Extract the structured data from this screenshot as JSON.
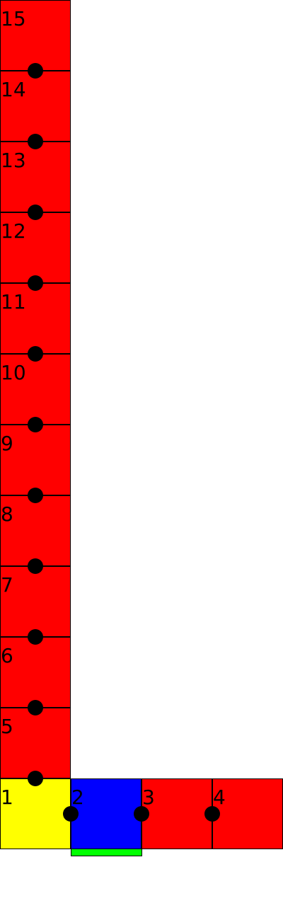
{
  "cells": [
    {
      "label": "1",
      "color": "#ffff00"
    },
    {
      "label": "2",
      "color": "#0000ff"
    },
    {
      "label": "3",
      "color": "#ff0000"
    },
    {
      "label": "4",
      "color": "#ff0000"
    },
    {
      "label": "5",
      "color": "#ff0000"
    },
    {
      "label": "6",
      "color": "#ff0000"
    },
    {
      "label": "7",
      "color": "#ff0000"
    },
    {
      "label": "8",
      "color": "#ff0000"
    },
    {
      "label": "9",
      "color": "#ff0000"
    },
    {
      "label": "10",
      "color": "#ff0000"
    },
    {
      "label": "11",
      "color": "#ff0000"
    },
    {
      "label": "12",
      "color": "#ff0000"
    },
    {
      "label": "13",
      "color": "#ff0000"
    },
    {
      "label": "14",
      "color": "#ff0000"
    },
    {
      "label": "15",
      "color": "#ff0000"
    }
  ],
  "joint_color": "#000000",
  "indicator_color": "#00ff00",
  "outline_color": "#000000"
}
